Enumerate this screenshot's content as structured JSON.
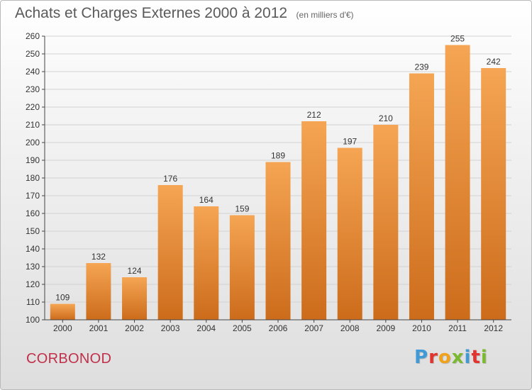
{
  "header": {
    "title": "Achats et Charges Externes 2000 à 2012",
    "subtitle": "(en milliers d'€)"
  },
  "footer": {
    "commune": "CORBONOD",
    "brand": "Proxiti",
    "brand_colors": [
      "#3f9ad6",
      "#e2342c",
      "#f0a21a",
      "#7bb930",
      "#3f9ad6",
      "#e2342c",
      "#7bb930"
    ]
  },
  "colors": {
    "bar_light": "#f5a553",
    "bar_dark": "#cc6c1b",
    "grid": "#d2d2d2",
    "axis": "#444444",
    "commune_text": "#c0304a"
  },
  "chart_data": {
    "type": "bar",
    "title": "Achats et Charges Externes 2000 à 2012",
    "subtitle": "(en milliers d'€)",
    "categories": [
      "2000",
      "2001",
      "2002",
      "2003",
      "2004",
      "2005",
      "2006",
      "2007",
      "2008",
      "2009",
      "2010",
      "2011",
      "2012"
    ],
    "values": [
      109,
      132,
      124,
      176,
      164,
      159,
      189,
      212,
      197,
      210,
      239,
      255,
      242
    ],
    "xlabel": "",
    "ylabel": "",
    "ylim": [
      100,
      260
    ],
    "yticks": [
      100,
      110,
      120,
      130,
      140,
      150,
      160,
      170,
      180,
      190,
      200,
      210,
      220,
      230,
      240,
      250,
      260
    ],
    "grid": true,
    "legend": "none"
  }
}
